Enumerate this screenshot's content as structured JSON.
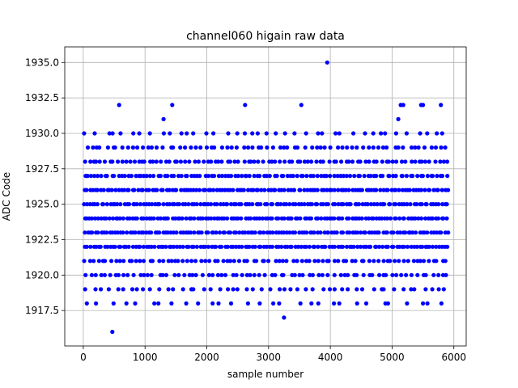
{
  "chart_data": {
    "type": "scatter",
    "title": "channel060 higain raw data",
    "xlabel": "sample number",
    "ylabel": "ADC Code",
    "xlim": [
      -300,
      6200
    ],
    "ylim": [
      1915.0,
      1936.1
    ],
    "xticks": [
      0,
      1000,
      2000,
      3000,
      4000,
      5000,
      6000
    ],
    "xtick_labels": [
      "0",
      "1000",
      "2000",
      "3000",
      "4000",
      "5000",
      "6000"
    ],
    "yticks": [
      1917.5,
      1920.0,
      1922.5,
      1925.0,
      1927.5,
      1930.0,
      1932.5,
      1935.0
    ],
    "ytick_labels": [
      "1917.5",
      "1920.0",
      "1922.5",
      "1925.0",
      "1927.5",
      "1930.0",
      "1932.5",
      "1935.0"
    ],
    "grid": true,
    "marker_color": "#0000ff",
    "x_range": [
      0,
      5920
    ],
    "levels": [
      {
        "y": 1922,
        "points": 130
      },
      {
        "y": 1923,
        "points": 130
      },
      {
        "y": 1924,
        "points": 130
      },
      {
        "y": 1925,
        "points": 130
      },
      {
        "y": 1926,
        "points": 130
      },
      {
        "y": 1927,
        "points": 110
      },
      {
        "y": 1928,
        "points": 90
      },
      {
        "y": 1921,
        "points": 85
      },
      {
        "y": 1929,
        "points": 70
      },
      {
        "y": 1920,
        "points": 75
      },
      {
        "y": 1919,
        "points": 50
      },
      {
        "y": 1930,
        "points": 40
      },
      {
        "y": 1918,
        "points": 30
      }
    ],
    "points": [
      {
        "x": 470,
        "y": 1916
      },
      {
        "x": 3250,
        "y": 1917
      },
      {
        "x": 1300,
        "y": 1931
      },
      {
        "x": 5100,
        "y": 1931
      },
      {
        "x": 580,
        "y": 1932
      },
      {
        "x": 1440,
        "y": 1932
      },
      {
        "x": 2620,
        "y": 1932
      },
      {
        "x": 3530,
        "y": 1932
      },
      {
        "x": 5140,
        "y": 1932
      },
      {
        "x": 5180,
        "y": 1932
      },
      {
        "x": 5470,
        "y": 1932
      },
      {
        "x": 5500,
        "y": 1932
      },
      {
        "x": 5790,
        "y": 1932
      },
      {
        "x": 3950,
        "y": 1935
      }
    ]
  }
}
